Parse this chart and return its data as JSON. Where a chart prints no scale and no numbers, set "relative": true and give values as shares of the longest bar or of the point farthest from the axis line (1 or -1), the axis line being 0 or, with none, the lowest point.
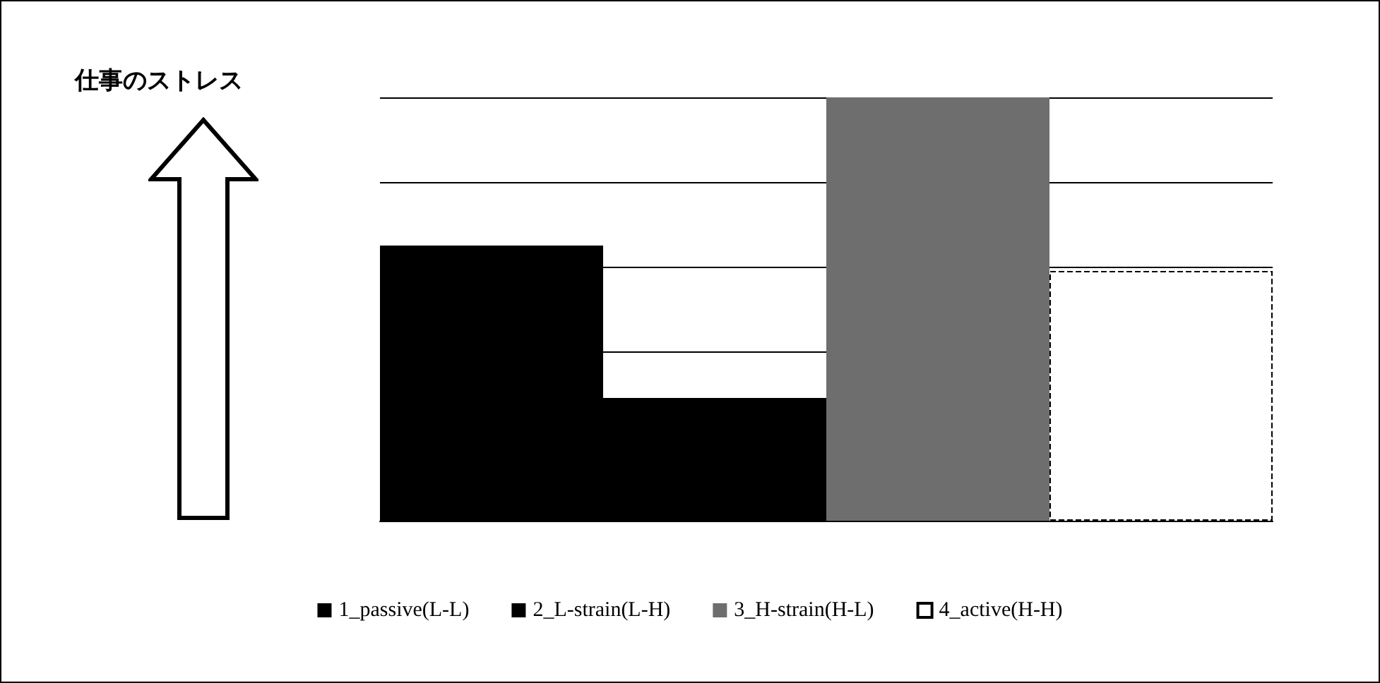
{
  "chart_data": {
    "type": "bar",
    "relative": true,
    "annotations": [
      "仕事のストレス"
    ],
    "categories": [
      null,
      null,
      null,
      null
    ],
    "stacked": true,
    "grid": "y",
    "legend": "bottom",
    "series": [
      {
        "name": "1_passive(L-L)",
        "color": "#000000",
        "values": [
          0.65,
          null,
          null,
          null
        ]
      },
      {
        "name": "2_L-strain(L-H)",
        "color": "#000000",
        "values": [
          null,
          0.29,
          null,
          null
        ]
      },
      {
        "name": "3_H-strain(H-L)",
        "color": "#6e6e6e",
        "values": [
          null,
          null,
          1,
          null
        ]
      },
      {
        "name": "4_active(H-H)",
        "color": "#ffffff",
        "values": [
          null,
          null,
          null,
          0.59
        ]
      }
    ]
  }
}
